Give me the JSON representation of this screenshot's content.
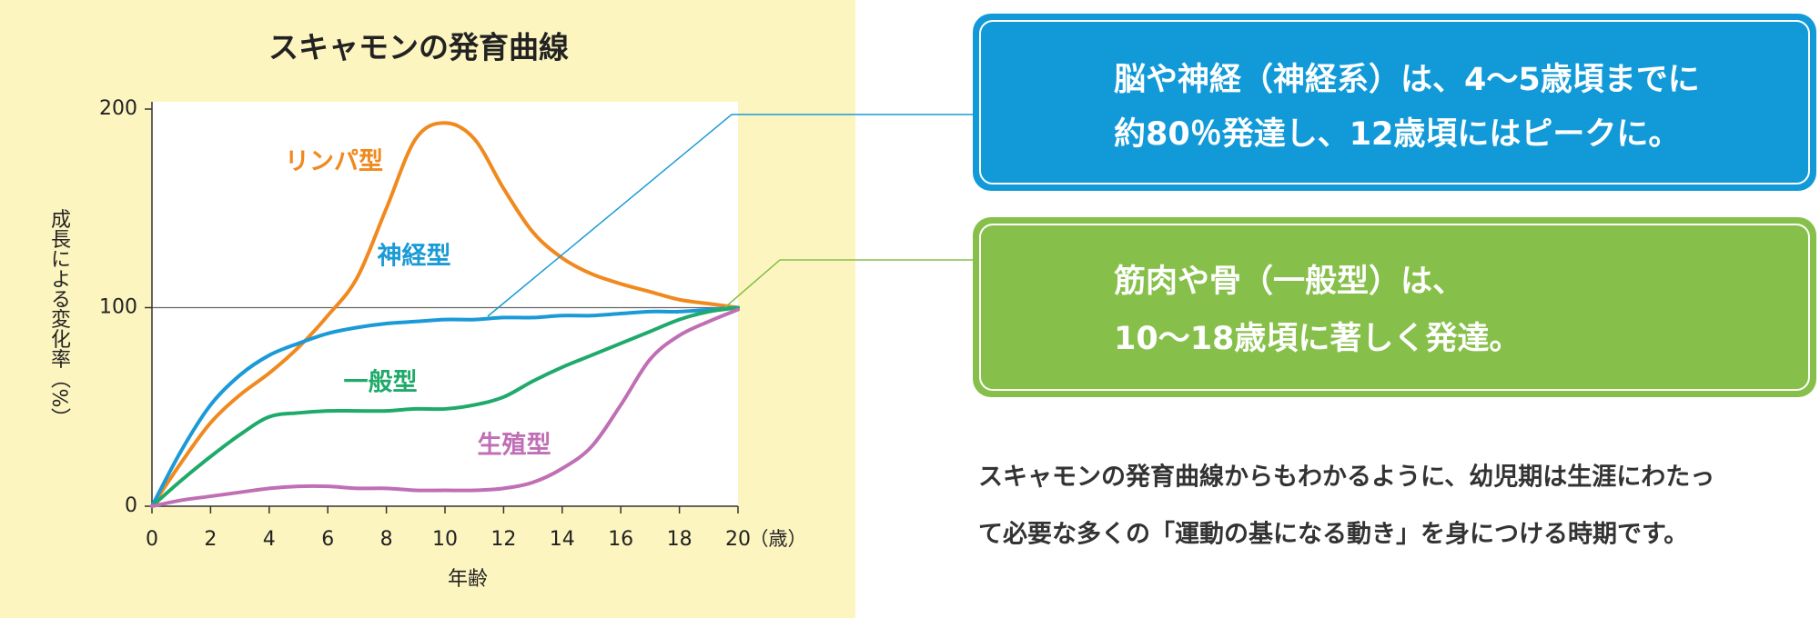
{
  "chart_data": {
    "type": "line",
    "title": "スキャモンの発育曲線",
    "x_label": "年齢",
    "x_unit": "（歳）",
    "y_label": "成長による変化率（%）",
    "x": [
      0,
      1,
      2,
      3,
      4,
      5,
      6,
      7,
      8,
      9,
      10,
      11,
      12,
      13,
      14,
      15,
      16,
      17,
      18,
      19,
      20
    ],
    "series": [
      {
        "name": "リンパ型",
        "color": "#f0891e",
        "values": [
          0,
          22,
          42,
          56,
          67,
          80,
          96,
          115,
          150,
          185,
          193,
          185,
          160,
          138,
          125,
          117,
          112,
          108,
          104,
          102,
          100
        ]
      },
      {
        "name": "神経型",
        "color": "#1a9ad6",
        "values": [
          0,
          28,
          51,
          66,
          76,
          82,
          87,
          90,
          92,
          93,
          94,
          94,
          95,
          95,
          96,
          96,
          97,
          98,
          98,
          99,
          100
        ]
      },
      {
        "name": "一般型",
        "color": "#1faa6a",
        "values": [
          0,
          13,
          25,
          36,
          45,
          47,
          48,
          48,
          48,
          49,
          49,
          51,
          55,
          63,
          70,
          76,
          82,
          88,
          94,
          98,
          100
        ]
      },
      {
        "name": "生殖型",
        "color": "#c06fb5",
        "values": [
          0,
          3,
          5,
          7,
          9,
          10,
          10,
          9,
          9,
          8,
          8,
          8,
          9,
          12,
          19,
          30,
          51,
          74,
          86,
          93,
          99
        ]
      }
    ],
    "xlim": [
      0,
      20
    ],
    "xticks": [
      0,
      2,
      4,
      6,
      8,
      10,
      12,
      14,
      16,
      18,
      20
    ],
    "ylim": [
      0,
      200
    ],
    "yticks": [
      0,
      100,
      200
    ],
    "reference_line": 100
  },
  "callouts": [
    {
      "lines": [
        "脳や神経（神経系）は、4〜5歳頃までに",
        "約80％発達し、12歳頃にはピークに。"
      ]
    },
    {
      "lines": [
        "筋肉や骨（一般型）は、",
        "10〜18歳頃に著しく発達。"
      ]
    }
  ],
  "paragraph": {
    "lines": [
      "スキャモンの発育曲線からもわかるように、幼児期は生涯にわたっ",
      "て必要な多くの「運動の基になる動き」を身につける時期です。"
    ]
  }
}
